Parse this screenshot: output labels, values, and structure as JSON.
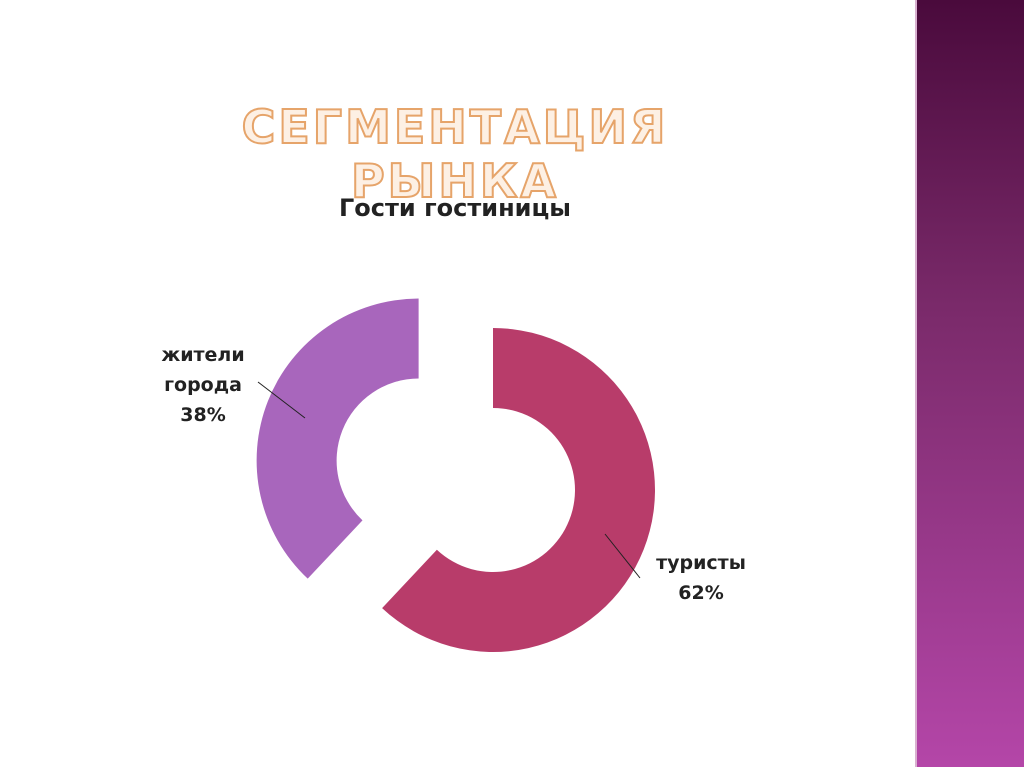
{
  "title": "СЕГМЕНТАЦИЯ РЫНКА",
  "chart_data": {
    "type": "donut",
    "title": "Гости гостиницы",
    "categories": [
      "туристы",
      "жители города"
    ],
    "values": [
      62,
      38
    ],
    "value_labels": [
      "62%",
      "38%"
    ],
    "colors": [
      "#b83c6a",
      "#a866bc"
    ]
  }
}
